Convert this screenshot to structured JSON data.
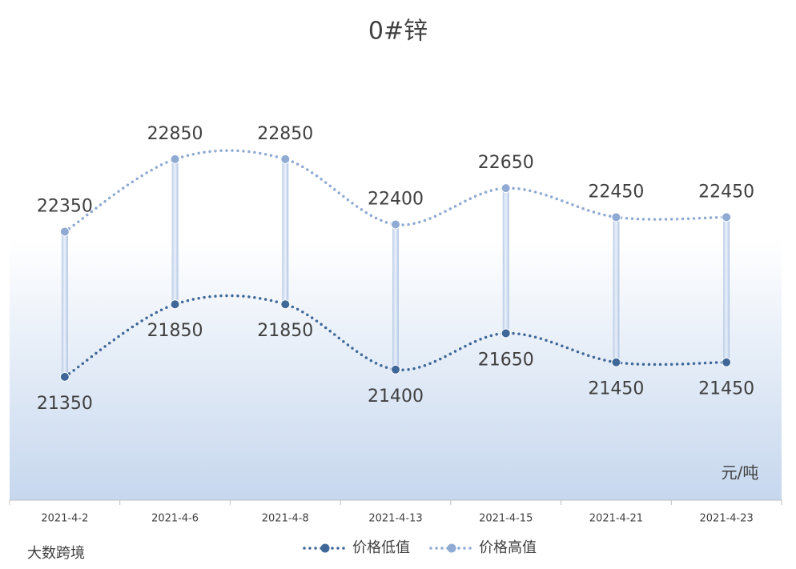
{
  "chart_data": {
    "type": "line",
    "title": "0#锌",
    "unit": "元/吨",
    "categories": [
      "2021-4-2",
      "2021-4-6",
      "2021-4-8",
      "2021-4-13",
      "2021-4-15",
      "2021-4-21",
      "2021-4-23"
    ],
    "series": [
      {
        "name": "价格低值",
        "color": "#3f6898",
        "values": [
          21350,
          21850,
          21850,
          21400,
          21650,
          21450,
          21450
        ]
      },
      {
        "name": "价格高值",
        "color": "#8faad3",
        "values": [
          22350,
          22850,
          22850,
          22400,
          22650,
          22450,
          22450
        ]
      }
    ],
    "ylim": [
      20500,
      23500
    ],
    "smooth": true,
    "legend": "bottom"
  },
  "watermark": "大数跨境"
}
